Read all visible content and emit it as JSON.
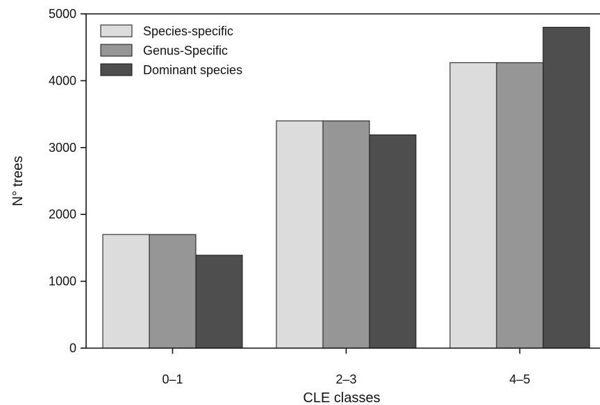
{
  "chart_data": {
    "type": "bar",
    "xlabel": "CLE classes",
    "ylabel": "N° trees",
    "categories": [
      "0–1",
      "2–3",
      "4–5"
    ],
    "ylim": [
      0,
      5000
    ],
    "yticks": [
      0,
      1000,
      2000,
      3000,
      4000,
      5000
    ],
    "grid": false,
    "legend_position": "top-left",
    "series": [
      {
        "name": "Species-specific",
        "color": "#dcdcdc",
        "values": [
          1700,
          3400,
          4270
        ]
      },
      {
        "name": "Genus-Specific",
        "color": "#969696",
        "values": [
          1700,
          3400,
          4270
        ]
      },
      {
        "name": "Dominant species",
        "color": "#4e4e4e",
        "values": [
          1390,
          3190,
          4800
        ]
      }
    ]
  }
}
